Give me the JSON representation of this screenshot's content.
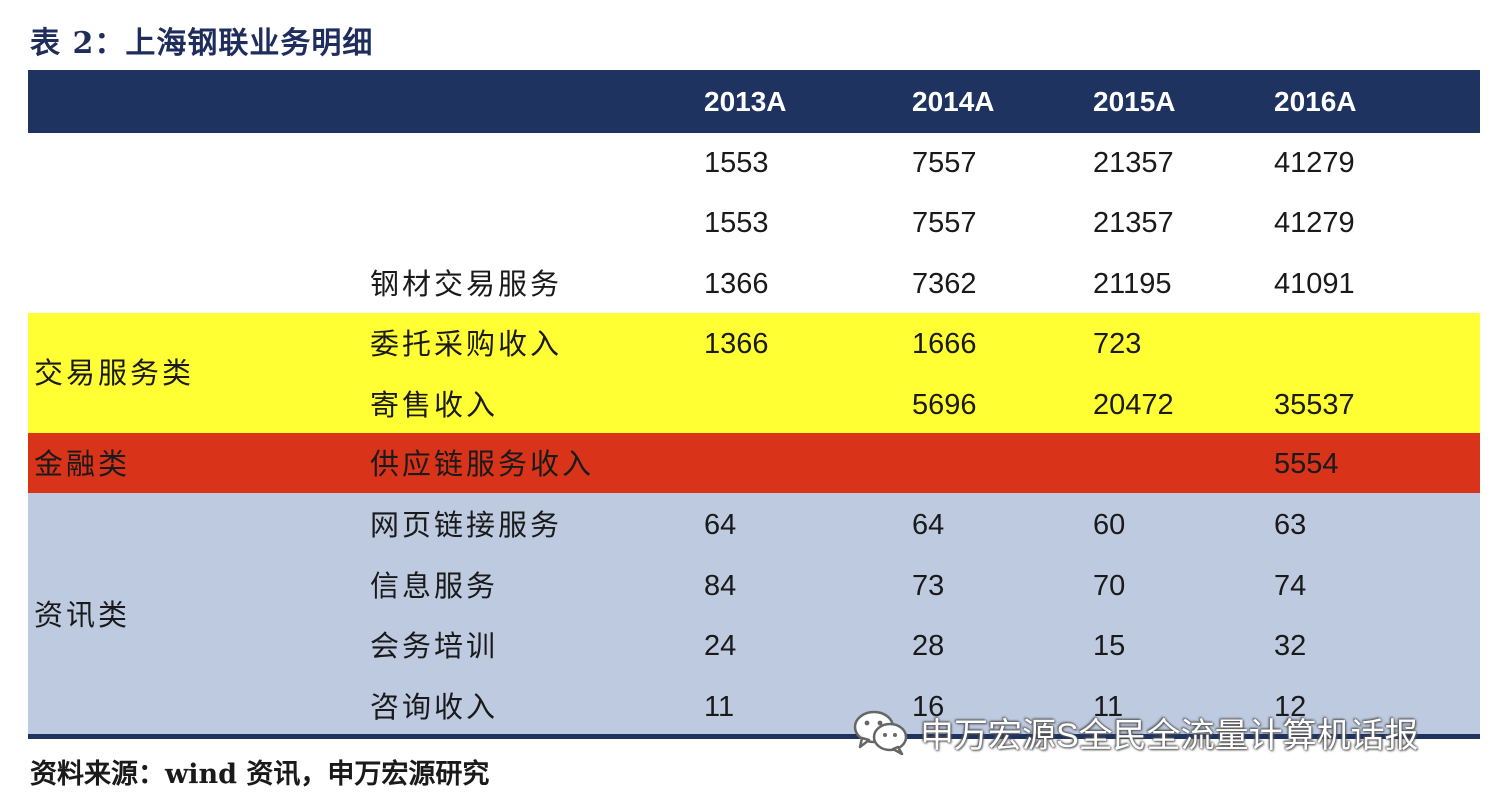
{
  "title": "表 2：上海钢联业务明细",
  "header": {
    "col0": "",
    "col1": "",
    "years": [
      "2013A",
      "2014A",
      "2015A",
      "2016A"
    ]
  },
  "rows": [
    {
      "category": "",
      "item": "",
      "values": [
        "1553",
        "7557",
        "21357",
        "41279"
      ]
    },
    {
      "category": "",
      "item": "",
      "values": [
        "1553",
        "7557",
        "21357",
        "41279"
      ]
    },
    {
      "category": "",
      "item": "钢材交易服务",
      "values": [
        "1366",
        "7362",
        "21195",
        "41091"
      ]
    },
    {
      "category": "",
      "item": "委托采购收入",
      "values": [
        "1366",
        "1666",
        "723",
        ""
      ]
    },
    {
      "category": "",
      "item": "寄售收入",
      "values": [
        "",
        "5696",
        "20472",
        "35537"
      ]
    },
    {
      "category": "",
      "item": "供应链服务收入",
      "values": [
        "",
        "",
        "",
        "5554"
      ]
    },
    {
      "category": "",
      "item": "网页链接服务",
      "values": [
        "64",
        "64",
        "60",
        "63"
      ]
    },
    {
      "category": "",
      "item": "信息服务",
      "values": [
        "84",
        "73",
        "70",
        "74"
      ]
    },
    {
      "category": "",
      "item": "会务培训",
      "values": [
        "24",
        "28",
        "15",
        "32"
      ]
    },
    {
      "category": "",
      "item": "咨询收入",
      "values": [
        "11",
        "16",
        "11",
        "12"
      ]
    }
  ],
  "groups": {
    "trade": "交易服务类",
    "finance": "金融类",
    "info": "资讯类"
  },
  "colors": {
    "header": "#1f3361",
    "trade_band": "#ffff33",
    "finance_band": "#d9331a",
    "info_band": "#bdcae0"
  },
  "source": "资料来源：wind 资讯，申万宏源研究",
  "watermark": {
    "icon": "wechat-icon",
    "text": "申万宏源S全民全流量计算机话报"
  }
}
